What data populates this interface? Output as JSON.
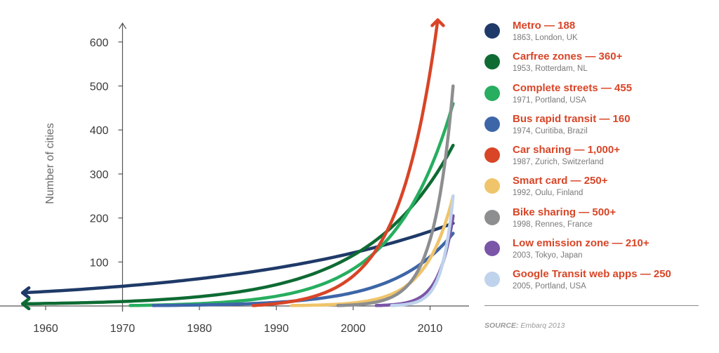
{
  "chart_data": {
    "type": "line",
    "title": "",
    "xlabel": "",
    "ylabel": "Number of cities",
    "xlim": [
      1957,
      2014
    ],
    "ylim": [
      0,
      650
    ],
    "x_ticks": [
      1960,
      1970,
      1980,
      1990,
      2000,
      2010
    ],
    "y_ticks": [
      100,
      200,
      300,
      400,
      500,
      600
    ],
    "series": [
      {
        "name": "Metro",
        "count": "188",
        "origin": "1863, London, UK",
        "color": "#1f3a68",
        "start": 1957,
        "end": 2013,
        "v0": 30,
        "v1": 188,
        "k": 0.035,
        "arrow": "left"
      },
      {
        "name": "Carfree zones",
        "count": "360+",
        "origin": "1953, Rotterdam, NL",
        "color": "#0e6b33",
        "start": 1957,
        "end": 2013,
        "v0": 5,
        "v1": 365,
        "k": 0.09,
        "arrow": "left"
      },
      {
        "name": "Complete streets",
        "count": "455",
        "origin": "1971, Portland, USA",
        "color": "#27ae60",
        "start": 1971,
        "end": 2013,
        "v0": 1,
        "v1": 460,
        "k": 0.13,
        "arrow": "none"
      },
      {
        "name": "Bus rapid transit",
        "count": "160",
        "origin": "1974, Curitiba, Brazil",
        "color": "#3d66a8",
        "start": 1974,
        "end": 2013,
        "v0": 1,
        "v1": 165,
        "k": 0.13,
        "arrow": "none"
      },
      {
        "name": "Car sharing",
        "count": "1,000+",
        "origin": "1987, Zurich, Switzerland",
        "color": "#d84527",
        "start": 1987,
        "end": 2011,
        "v0": 1,
        "v1": 650,
        "k": 0.2,
        "arrow": "up"
      },
      {
        "name": "Smart card",
        "count": "250+",
        "origin": "1992, Oulu, Finland",
        "color": "#f0c46a",
        "start": 1992,
        "end": 2013,
        "v0": 1,
        "v1": 250,
        "k": 0.28,
        "arrow": "none"
      },
      {
        "name": "Bike sharing",
        "count": "500+",
        "origin": "1998, Rennes, France",
        "color": "#8c8e90",
        "start": 1998,
        "end": 2013,
        "v0": 1,
        "v1": 500,
        "k": 0.4,
        "arrow": "none"
      },
      {
        "name": "Low emission zone",
        "count": "210+",
        "origin": "2003, Tokyo, Japan",
        "color": "#7a55a8",
        "start": 2003,
        "end": 2013,
        "v0": 1,
        "v1": 205,
        "k": 0.55,
        "arrow": "none"
      },
      {
        "name": "Google Transit web apps",
        "count": "250",
        "origin": "2005, Portland, USA",
        "color": "#bfd3ec",
        "start": 2005,
        "end": 2013,
        "v0": 1,
        "v1": 250,
        "k": 0.7,
        "arrow": "none"
      }
    ]
  },
  "source": {
    "label": "SOURCE:",
    "text": "Embarq 2013"
  }
}
